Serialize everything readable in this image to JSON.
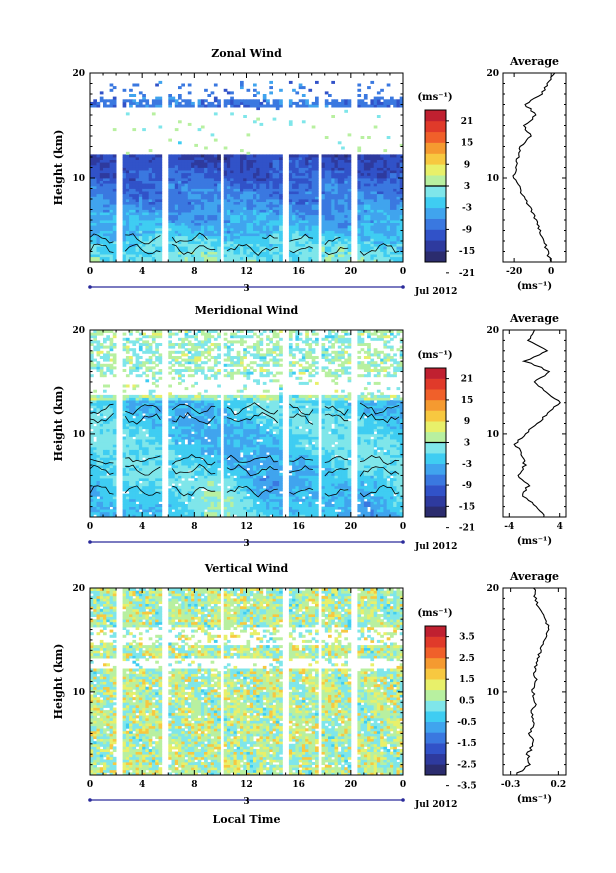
{
  "chart_data": [
    {
      "type": "heatmap",
      "title": "Zonal Wind",
      "ylabel": "Height (km)",
      "ylim": [
        2,
        20
      ],
      "xlim": [
        0,
        24
      ],
      "x_ticks": [
        "0",
        "4",
        "8",
        "12",
        "16",
        "20",
        "0"
      ],
      "y_ticks": [
        "20",
        "10"
      ],
      "day_label": "3",
      "date_label": "Jul 2012",
      "colorbar": {
        "unit": "(ms⁻¹)",
        "ticks": [
          "21",
          "15",
          "9",
          "3",
          "-3",
          "-9",
          "-15",
          "-21"
        ],
        "range": [
          -24,
          24
        ],
        "colors": [
          "#2b2c6e",
          "#2e3a9e",
          "#3152c8",
          "#3a78e0",
          "#40a4ee",
          "#3fcdf2",
          "#7fe6ea",
          "#b8f0a0",
          "#e8f06a",
          "#f7c840",
          "#f59a30",
          "#f0602a",
          "#e03a2a",
          "#c02030"
        ],
        "contour_level": 0
      },
      "average": {
        "title": "Average",
        "xlabel": "(ms⁻¹)",
        "x_ticks": [
          "-20",
          "0"
        ],
        "xlim": [
          -26,
          8
        ],
        "heights": [
          2,
          3,
          4,
          5,
          6,
          7,
          8,
          9,
          10,
          11,
          12,
          13,
          14,
          15,
          16,
          17,
          18,
          19,
          20
        ],
        "values": [
          -0.5,
          -2,
          -4,
          -6,
          -8,
          -11,
          -14,
          -17,
          -20,
          -19,
          -18,
          -17,
          -11,
          -15,
          -8,
          -14,
          -5,
          -2,
          2
        ]
      },
      "no_data_hours": [
        2.3,
        5.7,
        10.1,
        15.0,
        17.6,
        20.2
      ]
    },
    {
      "type": "heatmap",
      "title": "Meridional Wind",
      "ylabel": "Height (km)",
      "ylim": [
        2,
        20
      ],
      "xlim": [
        0,
        24
      ],
      "x_ticks": [
        "0",
        "4",
        "8",
        "12",
        "16",
        "20",
        "0"
      ],
      "y_ticks": [
        "20",
        "10"
      ],
      "day_label": "3",
      "date_label": "Jul 2012",
      "colorbar": {
        "unit": "(ms⁻¹)",
        "ticks": [
          "21",
          "15",
          "9",
          "3",
          "-3",
          "-9",
          "-15",
          "-21"
        ],
        "range": [
          -24,
          24
        ],
        "colors": [
          "#2b2c6e",
          "#2e3a9e",
          "#3152c8",
          "#3a78e0",
          "#40a4ee",
          "#3fcdf2",
          "#7fe6ea",
          "#b8f0a0",
          "#e8f06a",
          "#f7c840",
          "#f59a30",
          "#f0602a",
          "#e03a2a",
          "#c02030"
        ],
        "contour_level": 0
      },
      "average": {
        "title": "Average",
        "xlabel": "(ms⁻¹)",
        "x_ticks": [
          "-4",
          "4"
        ],
        "xlim": [
          -5,
          5
        ],
        "heights": [
          2,
          3,
          4,
          5,
          6,
          7,
          8,
          9,
          10,
          11,
          12,
          13,
          14,
          15,
          16,
          17,
          18,
          19,
          20
        ],
        "values": [
          1.5,
          0.5,
          -2,
          -1,
          -2.5,
          -1.5,
          -2,
          -3,
          -1.5,
          0.5,
          2,
          4,
          2,
          0,
          2.5,
          -1.5,
          2,
          -1,
          0
        ]
      },
      "no_data_hours": [
        2.3,
        5.7,
        10.1,
        15.0,
        17.6,
        20.2
      ]
    },
    {
      "type": "heatmap",
      "title": "Vertical Wind",
      "ylabel": "Height (km)",
      "xlabel": "Local Time",
      "ylim": [
        2,
        20
      ],
      "xlim": [
        0,
        24
      ],
      "x_ticks": [
        "0",
        "4",
        "8",
        "12",
        "16",
        "20",
        "0"
      ],
      "y_ticks": [
        "20",
        "10"
      ],
      "day_label": "3",
      "date_label": "Jul 2012",
      "colorbar": {
        "unit": "(ms⁻¹)",
        "ticks": [
          "3.5",
          "2.5",
          "1.5",
          "0.5",
          "-0.5",
          "-1.5",
          "-2.5",
          "-3.5"
        ],
        "range": [
          -4,
          4
        ],
        "colors": [
          "#2b2c6e",
          "#2e3a9e",
          "#3152c8",
          "#3a78e0",
          "#40a4ee",
          "#3fcdf2",
          "#7fe6ea",
          "#b8f0a0",
          "#e8f06a",
          "#f7c840",
          "#f59a30",
          "#f0602a",
          "#e03a2a",
          "#c02030"
        ]
      },
      "average": {
        "title": "Average",
        "xlabel": "(ms⁻¹)",
        "x_ticks": [
          "-0.3",
          "0.2"
        ],
        "xlim": [
          -0.38,
          0.28
        ],
        "heights": [
          2,
          3,
          4,
          5,
          6,
          7,
          8,
          9,
          10,
          11,
          12,
          13,
          14,
          15,
          16,
          17,
          18,
          19,
          20
        ],
        "values": [
          -0.25,
          -0.1,
          -0.12,
          -0.06,
          -0.1,
          -0.05,
          -0.08,
          -0.04,
          -0.07,
          -0.03,
          -0.05,
          -0.02,
          0.02,
          0.05,
          0.1,
          0.06,
          0.0,
          -0.04,
          -0.06
        ]
      },
      "no_data_hours": [
        2.3,
        5.7,
        10.1,
        15.0,
        17.6,
        20.2
      ]
    }
  ]
}
